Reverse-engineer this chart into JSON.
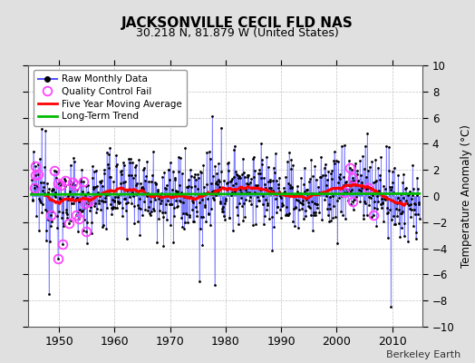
{
  "title": "JACKSONVILLE CECIL FLD NAS",
  "subtitle": "30.218 N, 81.879 W (United States)",
  "ylabel": "Temperature Anomaly (°C)",
  "attribution": "Berkeley Earth",
  "ylim": [
    -10,
    10
  ],
  "yticks": [
    -10,
    -8,
    -6,
    -4,
    -2,
    0,
    2,
    4,
    6,
    8,
    10
  ],
  "xlim": [
    1944.5,
    2015.5
  ],
  "xticks": [
    1950,
    1960,
    1970,
    1980,
    1990,
    2000,
    2010
  ],
  "start_year": 1945,
  "end_year": 2014,
  "fig_bg_color": "#e0e0e0",
  "plot_bg_color": "#ffffff",
  "raw_line_color": "#5555ff",
  "raw_marker_color": "#000000",
  "qc_color": "#ff44ff",
  "moving_avg_color": "#ff0000",
  "trend_color": "#00bb00",
  "seed": 12345
}
